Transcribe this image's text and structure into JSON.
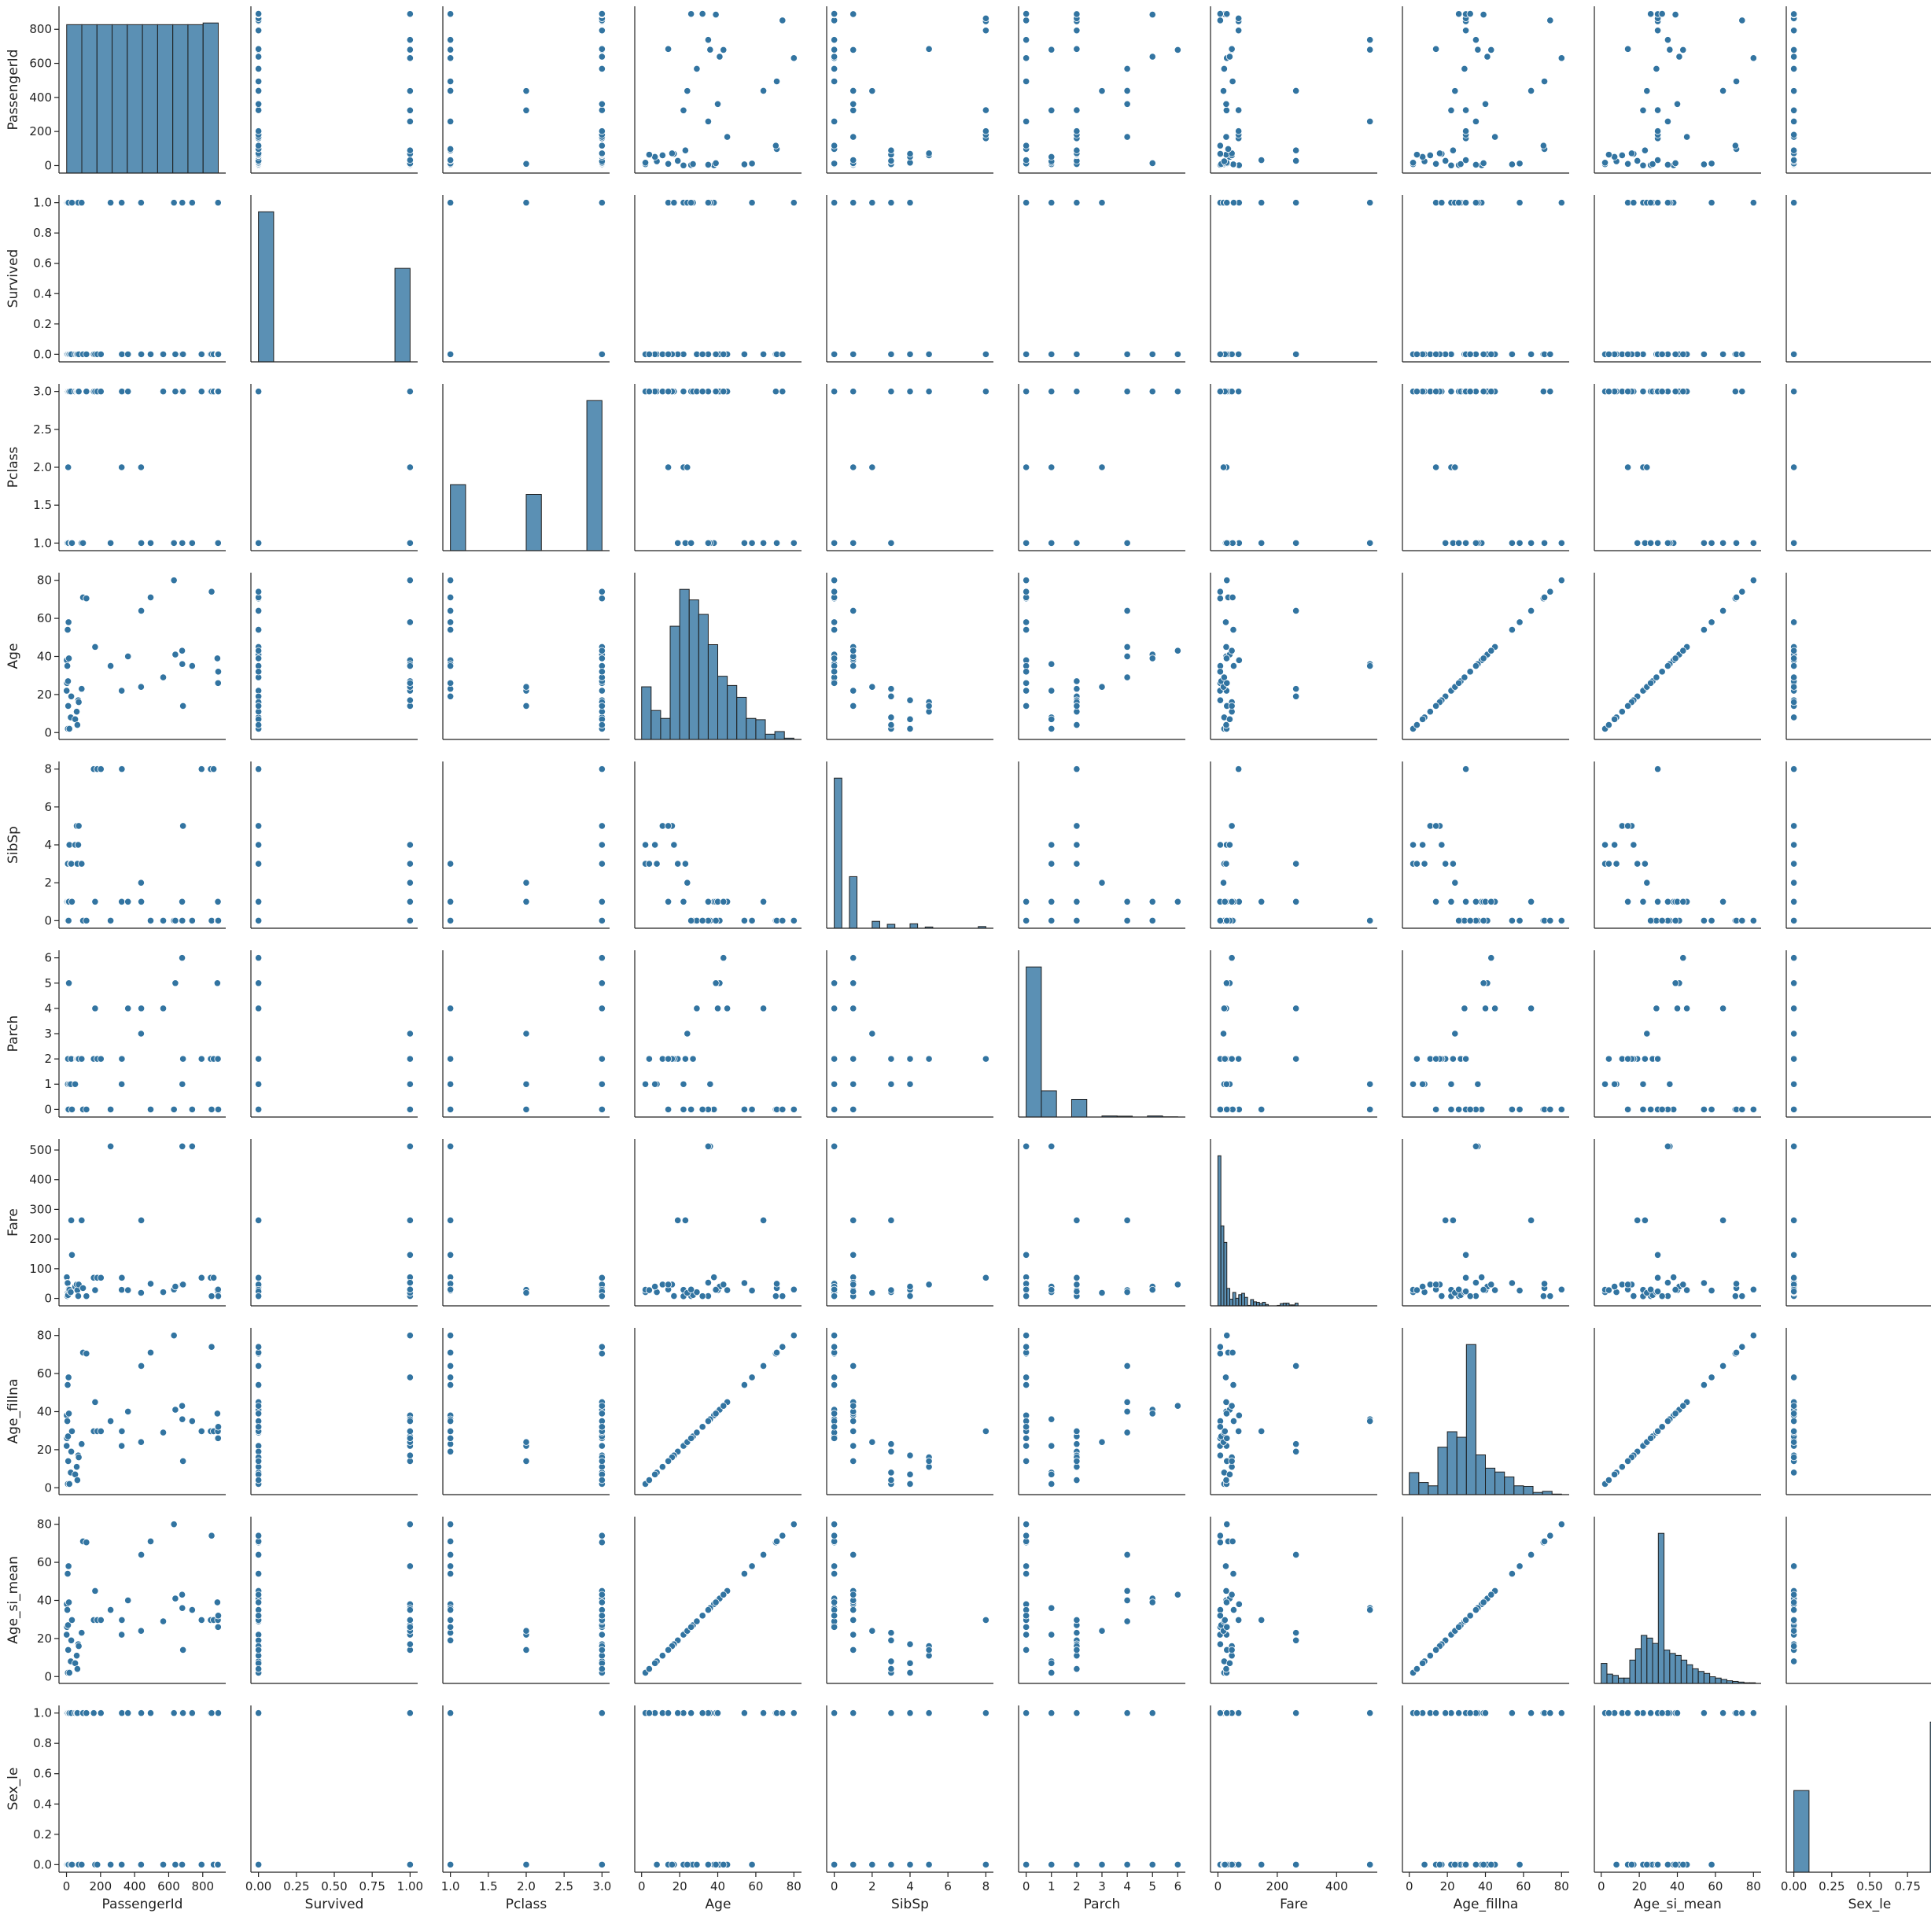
{
  "chart_data": {
    "type": "scatter",
    "subtype": "pairplot",
    "title": "",
    "color": "#3274a1",
    "grid": false,
    "legend": "none",
    "diagonal": "histogram",
    "off_diagonal": "scatter",
    "variables": [
      {
        "name": "PassengerId",
        "range": [
          -44,
          935
        ],
        "ticks": [
          0,
          200,
          400,
          600,
          800
        ],
        "tick_labels": [
          "0",
          "200",
          "400",
          "600",
          "800"
        ]
      },
      {
        "name": "Survived",
        "range": [
          -0.05,
          1.05
        ],
        "ticks": [
          0,
          0.2,
          0.4,
          0.6,
          0.8,
          1.0
        ],
        "tick_labels_x": [
          "0.00",
          "0.25",
          "0.50",
          "0.75",
          "1.00"
        ],
        "ticks_x": [
          0,
          0.25,
          0.5,
          0.75,
          1.0
        ],
        "tick_labels": [
          "0.0",
          "0.2",
          "0.4",
          "0.6",
          "0.8",
          "1.0"
        ]
      },
      {
        "name": "Pclass",
        "range": [
          0.9,
          3.1
        ],
        "ticks": [
          1.0,
          1.5,
          2.0,
          2.5,
          3.0
        ],
        "tick_labels": [
          "1.0",
          "1.5",
          "2.0",
          "2.5",
          "3.0"
        ]
      },
      {
        "name": "Age",
        "range": [
          -3.6,
          84
        ],
        "ticks": [
          0,
          20,
          40,
          60,
          80
        ],
        "tick_labels": [
          "0",
          "20",
          "40",
          "60",
          "80"
        ]
      },
      {
        "name": "SibSp",
        "range": [
          -0.4,
          8.4
        ],
        "ticks": [
          0,
          2,
          4,
          6,
          8
        ],
        "tick_labels": [
          "0",
          "2",
          "4",
          "6",
          "8"
        ]
      },
      {
        "name": "Parch",
        "range": [
          -0.3,
          6.3
        ],
        "ticks": [
          0,
          1,
          2,
          3,
          4,
          5,
          6
        ],
        "tick_labels": [
          "0",
          "1",
          "2",
          "3",
          "4",
          "5",
          "6"
        ]
      },
      {
        "name": "Fare",
        "range": [
          -25,
          537
        ],
        "ticks": [
          0,
          100,
          200,
          300,
          400,
          500
        ],
        "tick_labels": [
          "0",
          "100",
          "200",
          "300",
          "400",
          "500"
        ],
        "ticks_x": [
          0,
          200,
          400
        ],
        "tick_labels_x": [
          "0",
          "200",
          "400"
        ]
      },
      {
        "name": "Age_fillna",
        "range": [
          -3.6,
          84
        ],
        "ticks": [
          0,
          20,
          40,
          60,
          80
        ],
        "tick_labels": [
          "0",
          "20",
          "40",
          "60",
          "80"
        ]
      },
      {
        "name": "Age_si_mean",
        "range": [
          -3.6,
          84
        ],
        "ticks": [
          0,
          20,
          40,
          60,
          80
        ],
        "tick_labels": [
          "0",
          "20",
          "40",
          "60",
          "80"
        ]
      },
      {
        "name": "Sex_le",
        "range": [
          -0.05,
          1.05
        ],
        "ticks": [
          0,
          0.2,
          0.4,
          0.6,
          0.8,
          1.0
        ],
        "tick_labels_x": [
          "0.00",
          "0.25",
          "0.50",
          "0.75",
          "1.00"
        ],
        "ticks_x": [
          0,
          0.25,
          0.5,
          0.75,
          1.0
        ],
        "tick_labels": [
          "0.0",
          "0.2",
          "0.4",
          "0.6",
          "0.8",
          "1.0"
        ]
      }
    ],
    "histograms": {
      "PassengerId": {
        "edges": [
          1,
          90,
          179,
          268,
          357,
          446,
          535,
          624,
          713,
          802,
          891
        ],
        "counts": [
          89,
          89,
          89,
          89,
          89,
          89,
          89,
          89,
          89,
          90
        ]
      },
      "Survived": {
        "edges": [
          0,
          0.1,
          0.2,
          0.3,
          0.4,
          0.5,
          0.6,
          0.7,
          0.8,
          0.9,
          1.0
        ],
        "counts": [
          549,
          0,
          0,
          0,
          0,
          0,
          0,
          0,
          0,
          342
        ]
      },
      "Pclass": {
        "edges": [
          1,
          1.2,
          1.4,
          1.6,
          1.8,
          2.0,
          2.2,
          2.4,
          2.6,
          2.8,
          3.0
        ],
        "counts": [
          216,
          0,
          0,
          0,
          0,
          184,
          0,
          0,
          0,
          491
        ]
      },
      "Age": {
        "edges": [
          0,
          5,
          10,
          15,
          20,
          25,
          30,
          35,
          40,
          45,
          50,
          55,
          60,
          65,
          70,
          75,
          80
        ],
        "counts": [
          40,
          22,
          16,
          86,
          114,
          106,
          95,
          72,
          48,
          41,
          32,
          16,
          15,
          4,
          6,
          1
        ]
      },
      "SibSp": {
        "edges": [
          0,
          0.4,
          0.8,
          1.2,
          1.6,
          2.0,
          2.4,
          2.8,
          3.2,
          3.6,
          4.0,
          4.4,
          4.8,
          5.2,
          5.6,
          6.0,
          6.4,
          6.8,
          7.2,
          7.6,
          8.0
        ],
        "counts": [
          608,
          0,
          209,
          0,
          0,
          28,
          0,
          16,
          0,
          0,
          18,
          0,
          5,
          0,
          0,
          0,
          0,
          0,
          0,
          7
        ]
      },
      "Parch": {
        "edges": [
          0,
          0.6,
          1.2,
          1.8,
          2.4,
          3.0,
          3.6,
          4.2,
          4.8,
          5.4,
          6.0
        ],
        "counts": [
          678,
          118,
          0,
          80,
          0,
          5,
          4,
          0,
          5,
          1
        ]
      },
      "Fare": {
        "edges": [
          0,
          10,
          20,
          30,
          40,
          50,
          60,
          70,
          80,
          90,
          100,
          110,
          120,
          130,
          140,
          150,
          160,
          170,
          180,
          190,
          200,
          210,
          220,
          230,
          240,
          250,
          260,
          270,
          280,
          290,
          300
        ],
        "counts": [
          336,
          179,
          142,
          39,
          15,
          30,
          17,
          25,
          28,
          19,
          1,
          14,
          9,
          8,
          5,
          8,
          3,
          0,
          0,
          0,
          1,
          5,
          6,
          6,
          2,
          2,
          6,
          0,
          0,
          0
        ]
      },
      "Age_fillna": {
        "edges": [
          0,
          5,
          10,
          15,
          20,
          25,
          30,
          35,
          40,
          45,
          50,
          55,
          60,
          65,
          70,
          75,
          80
        ],
        "counts": [
          40,
          22,
          16,
          86,
          114,
          104,
          272,
          72,
          48,
          41,
          32,
          16,
          15,
          4,
          6,
          1
        ]
      },
      "Age_si_mean": {
        "edges": [
          0,
          3,
          6,
          9,
          12,
          15,
          18,
          21,
          24,
          27,
          30,
          33,
          36,
          39,
          42,
          45,
          48,
          51,
          54,
          57,
          60,
          63,
          66,
          69,
          72,
          75,
          78,
          81
        ],
        "counts": [
          30,
          14,
          12,
          8,
          8,
          35,
          52,
          72,
          68,
          60,
          225,
          50,
          45,
          42,
          35,
          28,
          22,
          18,
          15,
          10,
          8,
          6,
          4,
          3,
          2,
          1,
          1
        ]
      },
      "Sex_le": {
        "edges": [
          0,
          0.1,
          0.2,
          0.3,
          0.4,
          0.5,
          0.6,
          0.7,
          0.8,
          0.9,
          1.0
        ],
        "counts": [
          314,
          0,
          0,
          0,
          0,
          0,
          0,
          0,
          0,
          577
        ]
      }
    },
    "points": {
      "note_fields": [
        "PassengerId",
        "Survived",
        "Pclass",
        "Age",
        "SibSp",
        "Parch",
        "Fare",
        "Age_fillna",
        "Age_si_mean",
        "Sex_le"
      ],
      "rows": [
        [
          1,
          0,
          3,
          22,
          1,
          0,
          7.25,
          22,
          22,
          1
        ],
        [
          2,
          1,
          1,
          38,
          1,
          0,
          71.28,
          38,
          38,
          0
        ],
        [
          3,
          1,
          3,
          26,
          0,
          0,
          7.93,
          26,
          26,
          0
        ],
        [
          4,
          1,
          1,
          35,
          1,
          0,
          53.1,
          35,
          35,
          0
        ],
        [
          5,
          0,
          3,
          35,
          0,
          0,
          8.05,
          35,
          35,
          1
        ],
        [
          7,
          0,
          1,
          54,
          0,
          0,
          51.86,
          54,
          54,
          1
        ],
        [
          8,
          0,
          3,
          2,
          3,
          1,
          21.08,
          2,
          2,
          1
        ],
        [
          9,
          1,
          3,
          27,
          0,
          2,
          11.13,
          27,
          27,
          0
        ],
        [
          10,
          1,
          2,
          14,
          1,
          0,
          30.07,
          14,
          14,
          0
        ],
        [
          12,
          1,
          1,
          58,
          0,
          0,
          26.55,
          58,
          58,
          0
        ],
        [
          14,
          0,
          3,
          39,
          1,
          5,
          31.28,
          39,
          39,
          1
        ],
        [
          17,
          0,
          3,
          2,
          4,
          1,
          29.13,
          2,
          2,
          1
        ],
        [
          25,
          0,
          3,
          8,
          3,
          1,
          21.08,
          8,
          8,
          0
        ],
        [
          28,
          0,
          1,
          19,
          3,
          2,
          263,
          19,
          19,
          1
        ],
        [
          32,
          1,
          1,
          null,
          1,
          0,
          146.52,
          29.7,
          29.7,
          0
        ],
        [
          51,
          0,
          3,
          7,
          4,
          1,
          39.69,
          7,
          7,
          1
        ],
        [
          60,
          0,
          3,
          11,
          5,
          2,
          46.9,
          11,
          11,
          1
        ],
        [
          64,
          0,
          3,
          4,
          3,
          2,
          27.9,
          4,
          4,
          1
        ],
        [
          69,
          1,
          3,
          17,
          4,
          2,
          7.93,
          17,
          17,
          0
        ],
        [
          72,
          0,
          3,
          16,
          5,
          2,
          46.9,
          16,
          16,
          0
        ],
        [
          89,
          1,
          1,
          23,
          3,
          2,
          263,
          23,
          23,
          0
        ],
        [
          97,
          0,
          1,
          71,
          0,
          0,
          34.65,
          71,
          71,
          1
        ],
        [
          117,
          0,
          3,
          70.5,
          0,
          0,
          7.75,
          70.5,
          70.5,
          1
        ],
        [
          160,
          0,
          3,
          null,
          8,
          2,
          69.55,
          29.7,
          29.7,
          1
        ],
        [
          168,
          0,
          3,
          45,
          1,
          4,
          27.9,
          45,
          45,
          0
        ],
        [
          181,
          0,
          3,
          null,
          8,
          2,
          69.55,
          29.7,
          29.7,
          0
        ],
        [
          202,
          0,
          3,
          null,
          8,
          2,
          69.55,
          29.7,
          29.7,
          1
        ],
        [
          259,
          1,
          1,
          35,
          0,
          0,
          512.33,
          35,
          35,
          0
        ],
        [
          324,
          1,
          2,
          22,
          1,
          1,
          29,
          22,
          22,
          0
        ],
        [
          325,
          0,
          3,
          null,
          8,
          2,
          69.55,
          29.7,
          29.7,
          1
        ],
        [
          361,
          0,
          3,
          40,
          1,
          4,
          27.9,
          40,
          40,
          1
        ],
        [
          438,
          1,
          2,
          24,
          2,
          3,
          18.75,
          24,
          24,
          0
        ],
        [
          439,
          0,
          1,
          64,
          1,
          4,
          263,
          64,
          64,
          1
        ],
        [
          494,
          0,
          1,
          71,
          0,
          0,
          49.5,
          71,
          71,
          1
        ],
        [
          568,
          0,
          3,
          29,
          0,
          4,
          21.08,
          29,
          29,
          0
        ],
        [
          631,
          1,
          1,
          80,
          0,
          0,
          30,
          80,
          80,
          1
        ],
        [
          639,
          0,
          3,
          41,
          0,
          5,
          39.69,
          41,
          41,
          0
        ],
        [
          679,
          0,
          3,
          43,
          1,
          6,
          46.9,
          43,
          43,
          0
        ],
        [
          680,
          1,
          1,
          36,
          0,
          1,
          512.33,
          36,
          36,
          1
        ],
        [
          684,
          0,
          3,
          14,
          5,
          2,
          46.9,
          14,
          14,
          1
        ],
        [
          738,
          1,
          1,
          35,
          0,
          0,
          512.33,
          35,
          35,
          1
        ],
        [
          793,
          0,
          3,
          null,
          8,
          2,
          69.55,
          29.7,
          29.7,
          0
        ],
        [
          847,
          0,
          3,
          null,
          8,
          2,
          69.55,
          29.7,
          29.7,
          1
        ],
        [
          852,
          0,
          3,
          74,
          0,
          0,
          7.78,
          74,
          74,
          1
        ],
        [
          864,
          0,
          3,
          null,
          8,
          2,
          69.55,
          29.7,
          29.7,
          0
        ],
        [
          886,
          0,
          3,
          39,
          0,
          5,
          29.13,
          39,
          39,
          0
        ],
        [
          889,
          0,
          3,
          null,
          1,
          2,
          23.45,
          29.7,
          29.7,
          0
        ],
        [
          890,
          1,
          1,
          26,
          0,
          0,
          30,
          26,
          26,
          1
        ],
        [
          891,
          0,
          3,
          32,
          0,
          0,
          7.75,
          32,
          32,
          1
        ]
      ]
    }
  }
}
